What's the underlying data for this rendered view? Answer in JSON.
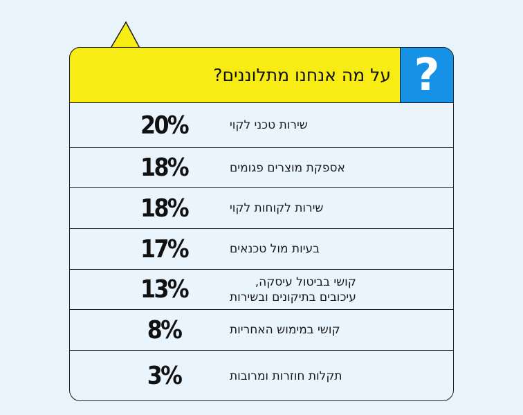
{
  "header": {
    "title": "על מה אנחנו מתלוננים?",
    "icon": "question-mark-icon",
    "icon_glyph": "?"
  },
  "colors": {
    "background": "#e8f3fc",
    "header_yellow": "#f7ec14",
    "icon_blue": "#1592e6",
    "text": "#111111",
    "border": "#1a1a1a"
  },
  "chart_data": {
    "type": "table",
    "title": "על מה אנחנו מתלוננים?",
    "categories": [
      "שירות טכני לקוי",
      "אספקת מוצרים פגומים",
      "שירות לקוחות לקוי",
      "בעיות מול טכנאים",
      "קושי בביטול עיסקה,\nעיכובים בתיקונים ובשירות",
      "קושי במימוש האחריות",
      "תקלות חוזרות ומרובות"
    ],
    "values": [
      20,
      18,
      18,
      17,
      13,
      8,
      3
    ],
    "value_labels": [
      "20%",
      "18%",
      "18%",
      "17%",
      "13%",
      "8%",
      "3%"
    ]
  }
}
